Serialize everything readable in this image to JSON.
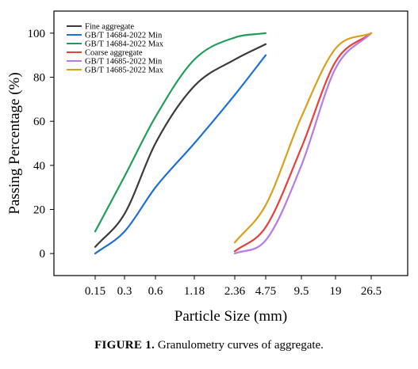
{
  "chart_data": {
    "type": "line",
    "xlabel": "Particle Size (mm)",
    "ylabel": "Passing Percentage (%)",
    "x_scale": "categorical",
    "x_ticks": [
      "0.15",
      "0.3",
      "0.6",
      "1.18",
      "2.36",
      "4.75",
      "9.5",
      "19",
      "26.5"
    ],
    "ylim": [
      -10,
      110
    ],
    "y_ticks": [
      "0",
      "20",
      "40",
      "60",
      "80",
      "100"
    ],
    "grid": false,
    "legend_position": "top-left",
    "series": [
      {
        "name": "Fine aggregate",
        "color": "#3a3a3a",
        "x": [
          "0.15",
          "0.3",
          "0.6",
          "1.18",
          "2.36",
          "4.75"
        ],
        "values": [
          3,
          18,
          50,
          76,
          88,
          95
        ]
      },
      {
        "name": "GB/T 14684-2022 Min",
        "color": "#1f6fd8",
        "x": [
          "0.15",
          "0.3",
          "0.6",
          "1.18",
          "2.36",
          "4.75"
        ],
        "values": [
          0,
          10,
          30,
          50,
          72,
          90
        ]
      },
      {
        "name": "GB/T 14684-2022 Max",
        "color": "#1f9e5a",
        "x": [
          "0.15",
          "0.3",
          "0.6",
          "1.18",
          "2.36",
          "4.75"
        ],
        "values": [
          10,
          35,
          62,
          88,
          98,
          100
        ]
      },
      {
        "name": "Coarse aggregate",
        "color": "#e8403a",
        "x": [
          "2.36",
          "4.75",
          "9.5",
          "19",
          "26.5"
        ],
        "values": [
          1,
          12,
          48,
          87,
          100
        ]
      },
      {
        "name": "GB/T 14685-2022 Min",
        "color": "#b57be6",
        "x": [
          "2.36",
          "4.75",
          "9.5",
          "19",
          "26.5"
        ],
        "values": [
          0,
          6,
          40,
          84,
          100
        ]
      },
      {
        "name": "GB/T 14685-2022 Max",
        "color": "#d9a01b",
        "x": [
          "2.36",
          "4.75",
          "9.5",
          "19",
          "26.5"
        ],
        "values": [
          5,
          22,
          62,
          93,
          100
        ]
      }
    ]
  },
  "caption": {
    "prefix": "FIGURE 1.",
    "text": "Granulometry curves of aggregate."
  }
}
